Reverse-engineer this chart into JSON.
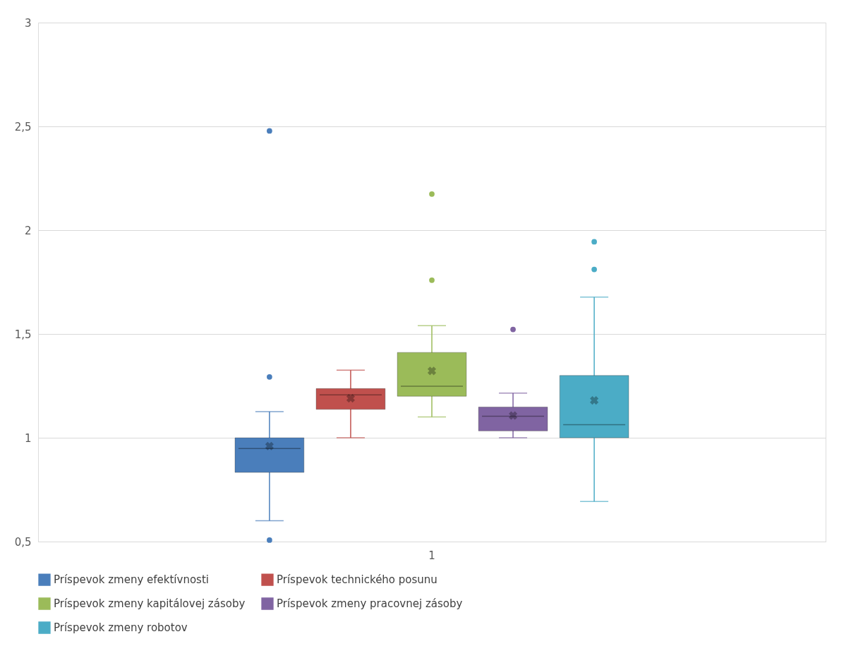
{
  "chart_data": {
    "type": "box",
    "categories": [
      "1"
    ],
    "series": [
      {
        "name": "Príspevok zmeny efektívnosti",
        "color": "#4a7ebb",
        "boxes": [
          {
            "low": 0.6,
            "q1": 0.833,
            "median": 0.948,
            "q3": 1.0,
            "high": 1.126,
            "mean": 0.96,
            "outliers": [
              1.293,
              2.478,
              0.507
            ]
          }
        ]
      },
      {
        "name": "Príspevok technického posunu",
        "color": "#c0504d",
        "boxes": [
          {
            "low": 1.0,
            "q1": 1.137,
            "median": 1.207,
            "q3": 1.237,
            "high": 1.326,
            "mean": 1.19
          }
        ]
      },
      {
        "name": "Príspevok zmeny kapitálovej zásoby",
        "color": "#9bbb59",
        "boxes": [
          {
            "low": 1.1,
            "q1": 1.2,
            "median": 1.248,
            "q3": 1.411,
            "high": 1.54,
            "mean": 1.322,
            "outliers": [
              1.759,
              2.174
            ]
          }
        ]
      },
      {
        "name": "Príspevok zmeny pracovnej zásoby",
        "color": "#8064a2",
        "boxes": [
          {
            "low": 1.0,
            "q1": 1.033,
            "median": 1.104,
            "q3": 1.148,
            "high": 1.215,
            "mean": 1.107,
            "outliers": [
              1.522
            ]
          }
        ]
      },
      {
        "name": "Príspevok zmeny robotov",
        "color": "#4bacc6",
        "boxes": [
          {
            "low": 0.693,
            "q1": 1.0,
            "median": 1.063,
            "q3": 1.3,
            "high": 1.678,
            "mean": 1.18,
            "outliers": [
              1.944,
              1.811
            ]
          }
        ]
      }
    ],
    "ylim": [
      0.5,
      3
    ],
    "yticks": [
      {
        "value": 0.5,
        "label": "0,5"
      },
      1,
      {
        "value": 1.5,
        "label": "1,5"
      },
      2,
      {
        "value": 2.5,
        "label": "2,5"
      },
      3
    ],
    "grid": "y",
    "legend": "bottom"
  }
}
